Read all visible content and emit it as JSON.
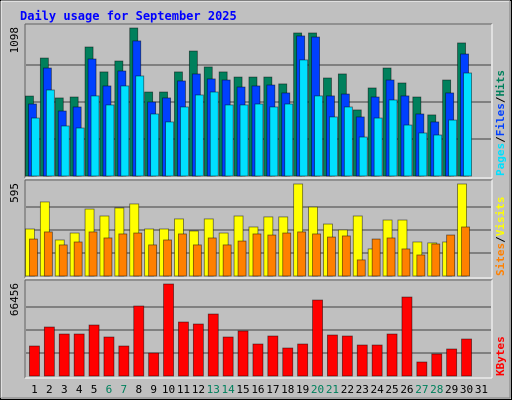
{
  "chart_data": {
    "type": "bar",
    "title": "Daily usage for September 2025",
    "legend_separator": "/",
    "categories": [
      "1",
      "2",
      "3",
      "4",
      "5",
      "6",
      "7",
      "8",
      "9",
      "10",
      "11",
      "12",
      "13",
      "14",
      "15",
      "16",
      "17",
      "18",
      "19",
      "20",
      "21",
      "22",
      "23",
      "24",
      "25",
      "26",
      "27",
      "28",
      "29",
      "30",
      "31"
    ],
    "label_colors": [
      "#000000",
      "#000000",
      "#000000",
      "#000000",
      "#000000",
      "#00805c",
      "#00805c",
      "#000000",
      "#000000",
      "#000000",
      "#000000",
      "#000000",
      "#00805c",
      "#00805c",
      "#000000",
      "#000000",
      "#000000",
      "#000000",
      "#000000",
      "#00805c",
      "#00805c",
      "#000000",
      "#000000",
      "#000000",
      "#000000",
      "#000000",
      "#00805c",
      "#00805c",
      "#000000",
      "#000000",
      "#000000"
    ],
    "panels": [
      {
        "ylim": [
          0,
          1098
        ],
        "yticks": [
          1098
        ],
        "series": [
          {
            "name": "Hits",
            "color": "#00805c",
            "values": [
              593,
              875,
              579,
              586,
              957,
              772,
              853,
              1098,
              623,
              623,
              772,
              927,
              809,
              772,
              734,
              734,
              734,
              683,
              1061,
              1061,
              727,
              757,
              490,
              653,
              801,
              690,
              586,
              453,
              712,
              987,
              null
            ]
          },
          {
            "name": "Files",
            "color": "#0040ff",
            "values": [
              534,
              801,
              482,
              512,
              868,
              668,
              779,
              1002,
              549,
              579,
              705,
              757,
              720,
              712,
              660,
              668,
              675,
              616,
              1039,
              1031,
              594,
              608,
              438,
              586,
              712,
              594,
              460,
              401,
              616,
              905,
              null
            ]
          },
          {
            "name": "Pages",
            "color": "#00e0ff",
            "values": [
              430,
              638,
              371,
              356,
              594,
              527,
              668,
              742,
              460,
              401,
              512,
              601,
              623,
              527,
              527,
              534,
              512,
              534,
              861,
              594,
              438,
              512,
              289,
              430,
              564,
              378,
              319,
              304,
              415,
              764,
              null
            ]
          }
        ]
      },
      {
        "ylim": [
          0,
          595
        ],
        "yticks": [
          595
        ],
        "series": [
          {
            "name": "Visits",
            "color": "#ffff00",
            "values": [
              304,
              479,
              233,
              278,
              433,
              388,
              440,
              466,
              304,
              304,
              369,
              291,
              369,
              278,
              388,
              317,
              382,
              382,
              595,
              446,
              336,
              298,
              388,
              175,
              362,
              362,
              220,
              214,
              220,
              595,
              null
            ]
          },
          {
            "name": "Sites",
            "color": "#ff8000",
            "values": [
              239,
              285,
              201,
              220,
              285,
              246,
              272,
              278,
              201,
              233,
              272,
              201,
              246,
              201,
              226,
              272,
              265,
              278,
              285,
              272,
              252,
              259,
              104,
              239,
              246,
              175,
              136,
              207,
              265,
              317,
              null
            ]
          }
        ]
      },
      {
        "ylim": [
          0,
          66456
        ],
        "yticks": [
          66456
        ],
        "series": [
          {
            "name": "KBytes",
            "color": "#ff0000",
            "values": [
              21660,
              35378,
              30324,
              30324,
              36822,
              28158,
              21660,
              50540,
              16606,
              66456,
              38988,
              37544,
              44764,
              28158,
              32490,
              23104,
              28880,
              20216,
              23104,
              54872,
              29602,
              28880,
              22382,
              22382,
              30324,
              57038,
              10108,
              15884,
              19494,
              26714,
              null
            ]
          }
        ]
      }
    ]
  }
}
